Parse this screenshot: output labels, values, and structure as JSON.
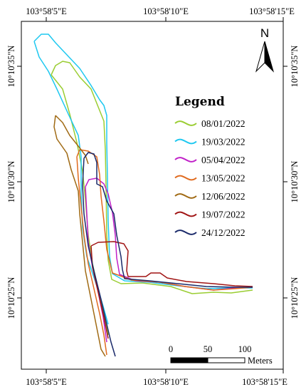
{
  "axes": {
    "top_ticks": [
      "103°58'5\"E",
      "103°58'10\"E",
      "103°58'15\"E"
    ],
    "bottom_ticks": [
      "103°58'5\"E",
      "103°58'10\"E",
      "103°58'15\"E"
    ],
    "left_ticks": [
      "10°10'35\"N",
      "10°10'30\"N",
      "10°10'25\"N"
    ],
    "right_ticks": [
      "10°10'35\"N",
      "10°10'30\"N",
      "10°10'25\"N"
    ]
  },
  "north_arrow": {
    "letter": "N",
    "icon": "north-arrow-icon"
  },
  "legend": {
    "title": "Legend",
    "items": [
      {
        "label": "08/01/2022",
        "color": "#9acd32"
      },
      {
        "label": "19/03/2022",
        "color": "#1ec8f0"
      },
      {
        "label": "05/04/2022",
        "color": "#c020c8"
      },
      {
        "label": "13/05/2022",
        "color": "#e06a1e"
      },
      {
        "label": "12/06/2022",
        "color": "#a06a14"
      },
      {
        "label": "19/07/2022",
        "color": "#a01414"
      },
      {
        "label": "24/12/2022",
        "color": "#1a2a6a"
      }
    ]
  },
  "scale_bar": {
    "labels": [
      "0",
      "50",
      "100"
    ],
    "unit": "Meters"
  }
}
